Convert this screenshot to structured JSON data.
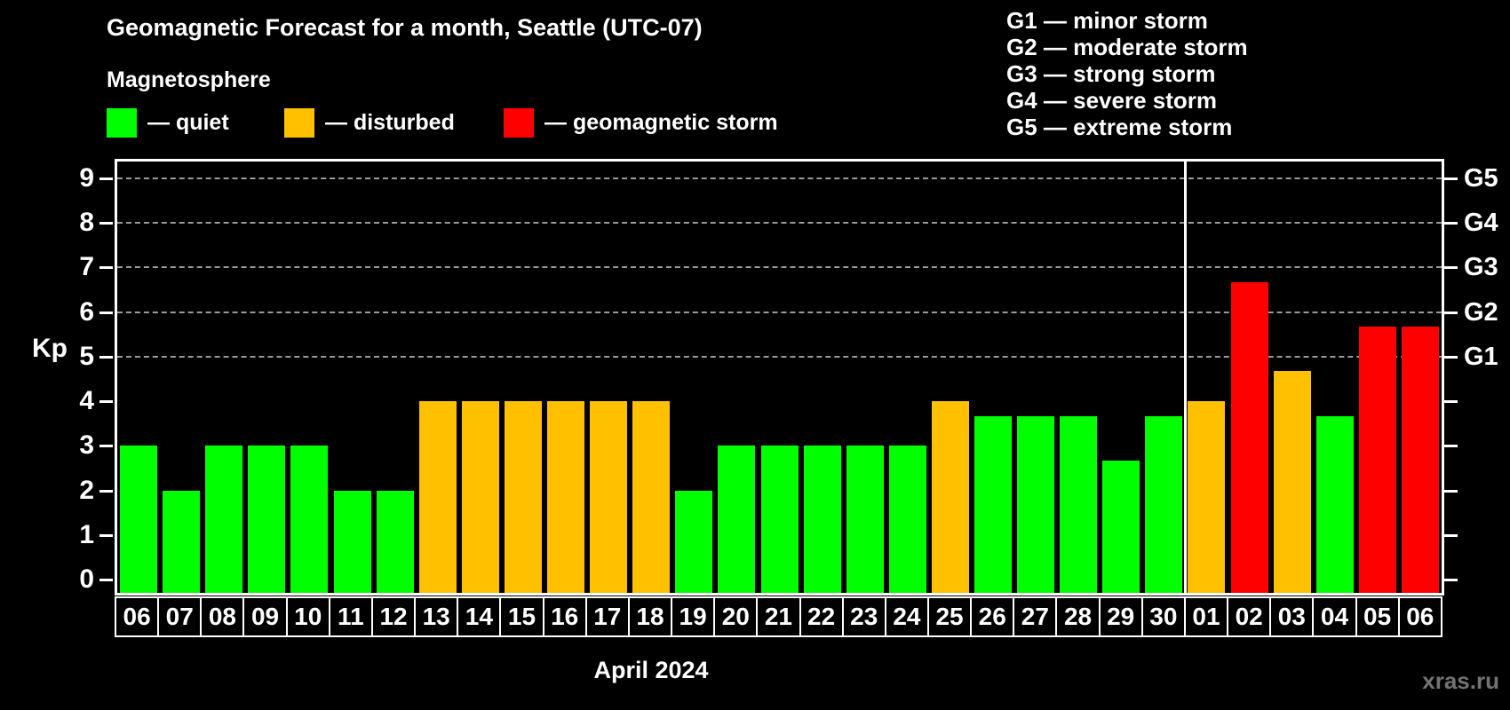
{
  "header": {
    "title": "Geomagnetic Forecast for a month, Seattle (UTC-07)",
    "subtitle": "Magnetosphere",
    "legend": [
      {
        "key": "quiet",
        "label": "— quiet"
      },
      {
        "key": "disturbed",
        "label": "— disturbed"
      },
      {
        "key": "storm",
        "label": "— geomagnetic storm"
      }
    ],
    "storm_scale": [
      "G1 — minor storm",
      "G2 — moderate storm",
      "G3 — strong storm",
      "G4 — severe storm",
      "G5 — extreme storm"
    ]
  },
  "colors": {
    "quiet": "#00ff00",
    "disturbed": "#ffc000",
    "storm": "#ff0000",
    "grid": "#9a9a9a",
    "axis": "#ffffff",
    "watermark": "#737373",
    "background": "#000000"
  },
  "chart_data": {
    "type": "bar",
    "title": "Geomagnetic Forecast for a month, Seattle (UTC-07)",
    "ylabel": "Kp",
    "xlabel": "April 2024",
    "ylim": [
      -0.3,
      9.4
    ],
    "y_ticks": [
      0,
      1,
      2,
      3,
      4,
      5,
      6,
      7,
      8,
      9
    ],
    "grid_levels": [
      5,
      6,
      7,
      8,
      9
    ],
    "grid_on": true,
    "right_axis_labels": [
      {
        "level": 5,
        "label": "G1"
      },
      {
        "level": 6,
        "label": "G2"
      },
      {
        "level": 7,
        "label": "G3"
      },
      {
        "level": 8,
        "label": "G4"
      },
      {
        "level": 9,
        "label": "G5"
      }
    ],
    "categories": [
      "06",
      "07",
      "08",
      "09",
      "10",
      "11",
      "12",
      "13",
      "14",
      "15",
      "16",
      "17",
      "18",
      "19",
      "20",
      "21",
      "22",
      "23",
      "24",
      "25",
      "26",
      "27",
      "28",
      "29",
      "30",
      "01",
      "02",
      "03",
      "04",
      "05",
      "06"
    ],
    "values": [
      3,
      2,
      3,
      3,
      3,
      2,
      2,
      4,
      4,
      4,
      4,
      4,
      4,
      2,
      3,
      3,
      3,
      3,
      3,
      4,
      3.67,
      3.67,
      3.67,
      2.67,
      3.67,
      4,
      6.67,
      4.67,
      3.67,
      5.67,
      5.67
    ],
    "statuses": [
      "quiet",
      "quiet",
      "quiet",
      "quiet",
      "quiet",
      "quiet",
      "quiet",
      "disturbed",
      "disturbed",
      "disturbed",
      "disturbed",
      "disturbed",
      "disturbed",
      "quiet",
      "quiet",
      "quiet",
      "quiet",
      "quiet",
      "quiet",
      "disturbed",
      "quiet",
      "quiet",
      "quiet",
      "quiet",
      "quiet",
      "disturbed",
      "storm",
      "disturbed",
      "quiet",
      "storm",
      "storm"
    ],
    "month_separator_after_index": 24,
    "legend_position": "top-left"
  },
  "footer": {
    "x_axis_title": "April 2024",
    "watermark": "xras.ru"
  }
}
